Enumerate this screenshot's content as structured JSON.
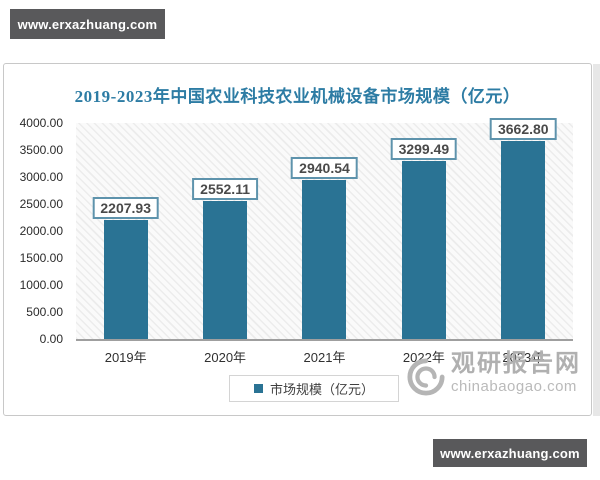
{
  "banners": {
    "top": "www.erxazhuang.com",
    "bottom": "www.erxazhuang.com"
  },
  "chart_data": {
    "type": "bar",
    "title": "2019-2023年中国农业科技农业机械设备市场规模（亿元）",
    "categories": [
      "2019年",
      "2020年",
      "2021年",
      "2022年",
      "2023年"
    ],
    "values": [
      2207.93,
      2552.11,
      2940.54,
      3299.49,
      3662.8
    ],
    "value_labels": [
      "2207.93",
      "2552.11",
      "2940.54",
      "3299.49",
      "3662.80"
    ],
    "ylim": [
      0,
      4000
    ],
    "ytick_step": 500,
    "ytick_labels": [
      "0.00",
      "500.00",
      "1000.00",
      "1500.00",
      "2000.00",
      "2500.00",
      "3000.00",
      "3500.00",
      "4000.00"
    ],
    "xlabel": "",
    "ylabel": "",
    "grid": false,
    "legend_position": "bottom",
    "legend_entries": [
      "市场规模（亿元）"
    ],
    "bar_color": "#2a7394",
    "label_box_border_color": "#5e93ac",
    "title_color": "#2d7ca4"
  },
  "legend": {
    "label": "市场规模（亿元）"
  },
  "watermark": {
    "name": "观研报告网",
    "domain": "chinabaogao.com"
  },
  "colors": {
    "banner_bg": "#59595b",
    "bar": "#2a7394",
    "title": "#2d7ca4",
    "axis_line": "#9f9f9f"
  }
}
